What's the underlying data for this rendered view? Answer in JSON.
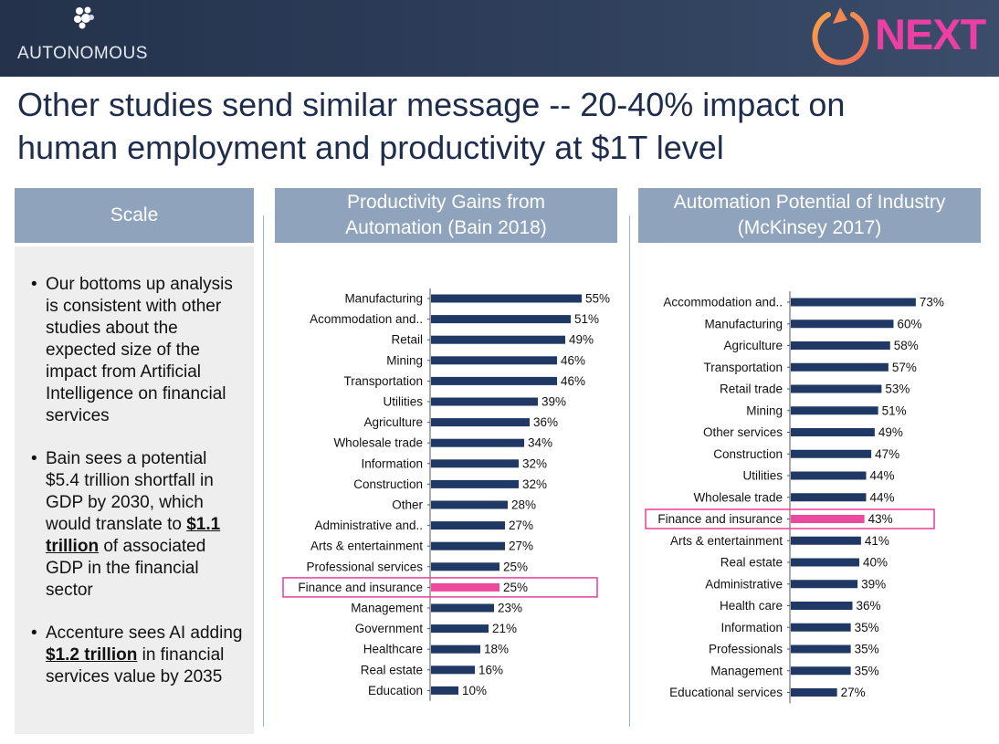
{
  "header": {
    "logo_text": "AUTONOMOUS",
    "next_logo_text": "NEXT",
    "colors": {
      "bar": "#1f3864",
      "highlight": "#ec4a9c",
      "panel_header": "#8fa3bd",
      "title": "#1f2d4d"
    }
  },
  "title": {
    "line1": "Other studies send similar message -- 20-40% impact on",
    "line2": "human employment and productivity at $1T level"
  },
  "scale_panel": {
    "header": "Scale",
    "bullets": [
      {
        "text": "Our bottoms up analysis is consistent with other studies about the expected size of the impact from Artificial Intelligence on financial services"
      },
      {
        "pre": "Bain sees a potential $5.4 trillion shortfall in GDP by 2030, which would translate to ",
        "bold": "$1.1 trillion",
        "post": " of associated GDP in the financial sector"
      },
      {
        "pre": "Accenture sees AI adding ",
        "bold": "$1.2 trillion",
        "post": " in financial services value by 2035"
      }
    ]
  },
  "chart_data": [
    {
      "type": "bar",
      "orientation": "horizontal",
      "title_line1": "Productivity Gains from",
      "title_line2": "Automation (Bain 2018)",
      "categories": [
        "Manufacturing",
        "Acommodation and..",
        "Retail",
        "Mining",
        "Transportation",
        "Utilities",
        "Agriculture",
        "Wholesale trade",
        "Information",
        "Construction",
        "Other",
        "Administrative and..",
        "Arts & entertainment",
        "Professional services",
        "Finance and insurance",
        "Management",
        "Government",
        "Healthcare",
        "Real estate",
        "Education"
      ],
      "values": [
        55,
        51,
        49,
        46,
        46,
        39,
        36,
        34,
        32,
        32,
        28,
        27,
        27,
        25,
        25,
        23,
        21,
        18,
        16,
        10
      ],
      "value_labels": [
        "55%",
        "51%",
        "49%",
        "46%",
        "46%",
        "39%",
        "36%",
        "34%",
        "32%",
        "32%",
        "28%",
        "27%",
        "27%",
        "25%",
        "25%",
        "23%",
        "21%",
        "18%",
        "16%",
        "10%"
      ],
      "highlight": "Finance and insurance",
      "xlim": [
        0,
        60
      ]
    },
    {
      "type": "bar",
      "orientation": "horizontal",
      "title_line1": "Automation Potential of Industry",
      "title_line2": "(McKinsey 2017)",
      "categories": [
        "Accommodation and..",
        "Manufacturing",
        "Agriculture",
        "Transportation",
        "Retail trade",
        "Mining",
        "Other services",
        "Construction",
        "Utilities",
        "Wholesale trade",
        "Finance and insurance",
        "Arts & entertainment",
        "Real estate",
        "Administrative",
        "Health care",
        "Information",
        "Professionals",
        "Management",
        "Educational services"
      ],
      "values": [
        73,
        60,
        58,
        57,
        53,
        51,
        49,
        47,
        44,
        44,
        43,
        41,
        40,
        39,
        36,
        35,
        35,
        35,
        27
      ],
      "value_labels": [
        "73%",
        "60%",
        "58%",
        "57%",
        "53%",
        "51%",
        "49%",
        "47%",
        "44%",
        "44%",
        "43%",
        "41%",
        "40%",
        "39%",
        "36%",
        "35%",
        "35%",
        "35%",
        "27%"
      ],
      "highlight": "Finance and insurance",
      "xlim": [
        0,
        80
      ]
    }
  ]
}
